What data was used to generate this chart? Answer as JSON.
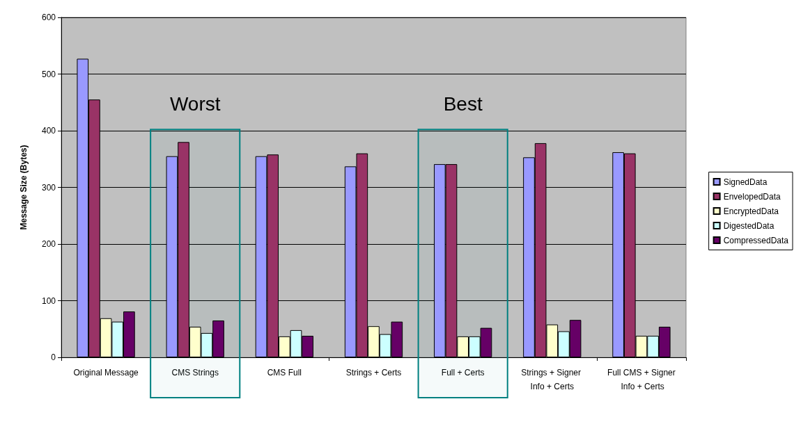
{
  "chart_data": {
    "type": "bar",
    "ylabel": "Message Size (Bytes)",
    "categories": [
      "Original Message",
      "CMS Strings",
      "CMS Full",
      "Strings + Certs",
      "Full + Certs",
      "Strings + Signer Info + Certs",
      "Full CMS + Signer Info + Certs"
    ],
    "series": [
      {
        "name": "SignedData",
        "color": "#9999ff",
        "values": [
          527,
          355,
          355,
          337,
          341,
          353,
          362
        ]
      },
      {
        "name": "EnvelopedData",
        "color": "#993366",
        "values": [
          455,
          380,
          358,
          360,
          341,
          378,
          360
        ]
      },
      {
        "name": "EncryptedData",
        "color": "#ffffcc",
        "values": [
          69,
          54,
          37,
          55,
          37,
          58,
          38
        ]
      },
      {
        "name": "DigestedData",
        "color": "#ccffff",
        "values": [
          63,
          43,
          48,
          41,
          37,
          46,
          38
        ]
      },
      {
        "name": "CompressedData",
        "color": "#660066",
        "values": [
          81,
          65,
          38,
          63,
          52,
          66,
          54
        ]
      }
    ],
    "ylim": [
      0,
      600
    ],
    "yticks": [
      0,
      100,
      200,
      300,
      400,
      500,
      600
    ],
    "grid": "y",
    "legend": "right",
    "bands": [
      {
        "axis": "x",
        "from": "CMS Strings",
        "to": "CMS Strings",
        "label": "Worst",
        "color": "#008080"
      },
      {
        "axis": "x",
        "from": "Full + Certs",
        "to": "Full + Certs",
        "label": "Best",
        "color": "#008080"
      }
    ]
  }
}
